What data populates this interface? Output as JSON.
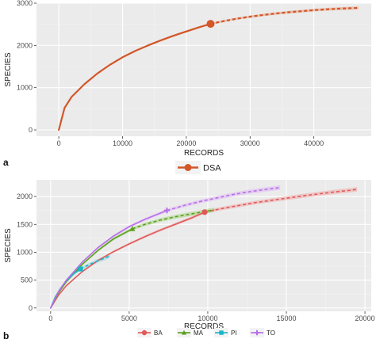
{
  "colors": {
    "panel_bg": "#ebebeb",
    "grid_major": "#ffffff",
    "grid_minor": "#f4f4f4"
  },
  "chart_data": [
    {
      "panel": "a",
      "type": "line",
      "xlabel": "RECORDS",
      "ylabel": "SPECIES",
      "xlim": [
        -3500,
        49000
      ],
      "ylim": [
        -150,
        3000
      ],
      "xticks": [
        0,
        10000,
        20000,
        30000,
        40000
      ],
      "yticks": [
        0,
        1000,
        2000,
        3000
      ],
      "xtick_labels": [
        "0",
        "10000",
        "20000",
        "30000",
        "40000"
      ],
      "ytick_labels": [
        "0",
        "1000",
        "2000",
        "3000"
      ],
      "grid": true,
      "legend_position": "bottom",
      "series": [
        {
          "name": "DSA",
          "color": "#d2572a",
          "ribbon_color": "#e8a07f",
          "observed_n": 23800,
          "observed_s": 2510,
          "rarefied": [
            [
              0,
              0
            ],
            [
              900,
              520
            ],
            [
              2000,
              780
            ],
            [
              4000,
              1080
            ],
            [
              6000,
              1330
            ],
            [
              8000,
              1540
            ],
            [
              10000,
              1720
            ],
            [
              12000,
              1870
            ],
            [
              14000,
              2000
            ],
            [
              16000,
              2120
            ],
            [
              18000,
              2230
            ],
            [
              20000,
              2330
            ],
            [
              22000,
              2430
            ],
            [
              23800,
              2510
            ]
          ],
          "extrapolated": [
            [
              23800,
              2510
            ],
            [
              26000,
              2580
            ],
            [
              28000,
              2635
            ],
            [
              30000,
              2680
            ],
            [
              32000,
              2720
            ],
            [
              34000,
              2755
            ],
            [
              36000,
              2785
            ],
            [
              38000,
              2810
            ],
            [
              40000,
              2835
            ],
            [
              42000,
              2855
            ],
            [
              44000,
              2870
            ],
            [
              46000,
              2882
            ],
            [
              47000,
              2888
            ]
          ]
        }
      ]
    },
    {
      "panel": "b",
      "type": "line",
      "xlabel": "RECORDS",
      "ylabel": "SPECIES",
      "xlim": [
        -900,
        20400
      ],
      "ylim": [
        -60,
        2300
      ],
      "xticks": [
        0,
        5000,
        10000,
        15000,
        20000
      ],
      "yticks": [
        0,
        500,
        1000,
        1500,
        2000
      ],
      "xtick_labels": [
        "0",
        "5000",
        "10000",
        "15000",
        "20000"
      ],
      "ytick_labels": [
        "0",
        "500",
        "1000",
        "1500",
        "2000"
      ],
      "grid": true,
      "legend_position": "bottom",
      "series": [
        {
          "name": "BA",
          "color": "#e05a5a",
          "ribbon_color": "#f0a5a5",
          "marker": "circle",
          "observed_n": 9800,
          "observed_s": 1720,
          "rarefied": [
            [
              0,
              0
            ],
            [
              500,
              230
            ],
            [
              1000,
              400
            ],
            [
              2000,
              650
            ],
            [
              3000,
              850
            ],
            [
              4000,
              1010
            ],
            [
              5000,
              1150
            ],
            [
              6000,
              1280
            ],
            [
              7000,
              1400
            ],
            [
              8000,
              1510
            ],
            [
              9000,
              1620
            ],
            [
              9800,
              1720
            ]
          ],
          "extrapolated": [
            [
              9800,
              1720
            ],
            [
              11000,
              1790
            ],
            [
              12000,
              1840
            ],
            [
              13000,
              1890
            ],
            [
              14000,
              1930
            ],
            [
              15000,
              1970
            ],
            [
              16000,
              2010
            ],
            [
              17000,
              2045
            ],
            [
              18000,
              2080
            ],
            [
              19000,
              2110
            ],
            [
              19500,
              2130
            ]
          ]
        },
        {
          "name": "MA",
          "color": "#5aa01e",
          "ribbon_color": "#a6d27d",
          "marker": "triangle",
          "observed_n": 5200,
          "observed_s": 1420,
          "rarefied": [
            [
              0,
              0
            ],
            [
              500,
              270
            ],
            [
              1000,
              470
            ],
            [
              2000,
              780
            ],
            [
              3000,
              1030
            ],
            [
              4000,
              1240
            ],
            [
              5200,
              1420
            ]
          ],
          "extrapolated": [
            [
              5200,
              1420
            ],
            [
              6000,
              1500
            ],
            [
              7000,
              1580
            ],
            [
              8000,
              1640
            ],
            [
              9000,
              1690
            ],
            [
              10000,
              1740
            ],
            [
              10400,
              1760
            ]
          ]
        },
        {
          "name": "PI",
          "color": "#19b5c6",
          "ribbon_color": "#8fdbe3",
          "marker": "square",
          "observed_n": 1900,
          "observed_s": 700,
          "rarefied": [
            [
              0,
              0
            ],
            [
              300,
              200
            ],
            [
              600,
              340
            ],
            [
              1000,
              490
            ],
            [
              1500,
              620
            ],
            [
              1900,
              700
            ]
          ],
          "extrapolated": [
            [
              1900,
              700
            ],
            [
              2400,
              770
            ],
            [
              2900,
              835
            ],
            [
              3400,
              890
            ],
            [
              3800,
              940
            ]
          ]
        },
        {
          "name": "TO",
          "color": "#b86ee8",
          "ribbon_color": "#dcb7f4",
          "marker": "cross",
          "observed_n": 7400,
          "observed_s": 1750,
          "rarefied": [
            [
              0,
              0
            ],
            [
              500,
              290
            ],
            [
              1000,
              500
            ],
            [
              2000,
              820
            ],
            [
              3000,
              1080
            ],
            [
              4000,
              1290
            ],
            [
              5000,
              1460
            ],
            [
              6000,
              1590
            ],
            [
              7400,
              1750
            ]
          ],
          "extrapolated": [
            [
              7400,
              1750
            ],
            [
              8500,
              1840
            ],
            [
              9500,
              1910
            ],
            [
              10500,
              1970
            ],
            [
              11500,
              2030
            ],
            [
              12500,
              2080
            ],
            [
              13500,
              2120
            ],
            [
              14600,
              2160
            ]
          ]
        }
      ]
    }
  ]
}
